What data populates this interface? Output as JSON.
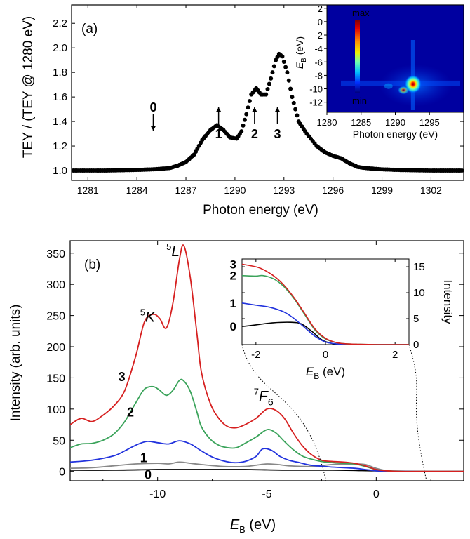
{
  "colors": {
    "black": "#000000",
    "red": "#d62020",
    "green": "#3aa35a",
    "blue": "#2233dd",
    "gray": "#888888"
  },
  "chart_data": [
    {
      "type": "scatter",
      "panel_label": "(a)",
      "xlabel": "Photon energy (eV)",
      "ylabel": "TEY / (TEY @ 1280 eV)",
      "xlim": [
        1280,
        1304
      ],
      "ylim": [
        0.92,
        2.35
      ],
      "xticks": [
        1281,
        1284,
        1287,
        1290,
        1293,
        1296,
        1299,
        1302
      ],
      "xtick_labels": [
        "1281",
        "1284",
        "1287",
        "1290",
        "1293",
        "1296",
        "1299",
        "1302"
      ],
      "yticks": [
        1.0,
        1.2,
        1.4,
        1.6,
        1.8,
        2.0,
        2.2
      ],
      "ytick_labels": [
        "1.0",
        "1.2",
        "1.4",
        "1.6",
        "1.8",
        "2.0",
        "2.2"
      ],
      "series": [
        {
          "x": [
            1280,
            1282,
            1284,
            1285,
            1286,
            1286.5,
            1287,
            1287.5,
            1288,
            1288.5,
            1288.9,
            1289.3,
            1289.7,
            1290.1,
            1290.4,
            1290.7,
            1291.0,
            1291.3,
            1291.6,
            1291.9,
            1292.2,
            1292.5,
            1292.7,
            1292.9,
            1293.2,
            1293.5,
            1293.9,
            1294.4,
            1295.0,
            1295.5,
            1296.0,
            1296.5,
            1297.0,
            1297.5,
            1298.0,
            1299.0,
            1300.0,
            1302.0,
            1304.0
          ],
          "y": [
            1.0,
            1.0,
            1.005,
            1.01,
            1.02,
            1.04,
            1.07,
            1.13,
            1.25,
            1.33,
            1.37,
            1.33,
            1.27,
            1.26,
            1.32,
            1.46,
            1.62,
            1.67,
            1.62,
            1.62,
            1.75,
            1.9,
            1.95,
            1.93,
            1.8,
            1.6,
            1.4,
            1.3,
            1.2,
            1.15,
            1.12,
            1.1,
            1.06,
            1.03,
            1.02,
            1.01,
            1.005,
            1.0,
            1.0
          ]
        }
      ],
      "annotations": [
        {
          "text": "0",
          "x": 1285.0,
          "color": "#000000"
        },
        {
          "text": "1",
          "x": 1289.0,
          "color": "#2233dd"
        },
        {
          "text": "2",
          "x": 1291.2,
          "color": "#3aa35a"
        },
        {
          "text": "3",
          "x": 1292.6,
          "color": "#d62020"
        }
      ],
      "inset": {
        "type": "heatmap",
        "xlabel": "Photon energy (eV)",
        "ylabel": "E",
        "ylabel_sub": "B",
        "ylabel_unit": " (eV)",
        "xlim": [
          1280,
          1300
        ],
        "ylim": [
          -13.5,
          2.5
        ],
        "xticks": [
          1280,
          1285,
          1290,
          1295
        ],
        "xtick_labels": [
          "1280",
          "1285",
          "1290",
          "1295"
        ],
        "yticks": [
          2,
          0,
          -2,
          -4,
          -6,
          -8,
          -10,
          -12
        ],
        "ytick_labels": [
          "2",
          "0",
          "-2",
          "-4",
          "-6",
          "-8",
          "-10",
          "-12"
        ],
        "colorbar": {
          "max_label": "max",
          "min_label": "min"
        }
      }
    },
    {
      "type": "line",
      "panel_label": "(b)",
      "xlabel": "E",
      "xlabel_sub": "B",
      "xlabel_unit": " (eV)",
      "ylabel": "Intensity (arb. units)",
      "xlim": [
        -14,
        4
      ],
      "ylim": [
        -15,
        370
      ],
      "xticks": [
        -10,
        -5,
        0
      ],
      "xtick_labels": [
        "-10",
        "-5",
        "0"
      ],
      "yticks": [
        0,
        50,
        100,
        150,
        200,
        250,
        300,
        350
      ],
      "ytick_labels": [
        "0",
        "50",
        "100",
        "150",
        "200",
        "250",
        "300",
        "350"
      ],
      "series": [
        {
          "label": "3",
          "color": "#d62020",
          "x": [
            -14,
            -13.5,
            -13,
            -12.5,
            -12,
            -11.5,
            -11,
            -10.6,
            -10.2,
            -9.9,
            -9.6,
            -9.3,
            -9.0,
            -8.8,
            -8.5,
            -8.2,
            -8.0,
            -7.6,
            -7.2,
            -6.8,
            -6.4,
            -6.0,
            -5.5,
            -5.0,
            -4.6,
            -4.2,
            -3.8,
            -3.4,
            -3.0,
            -2.5,
            -2.0,
            -1.5,
            -1.0,
            -0.5,
            0.0,
            0.5,
            1.0,
            2.0,
            4.0
          ],
          "y": [
            75,
            85,
            80,
            90,
            105,
            130,
            185,
            240,
            252,
            245,
            230,
            270,
            340,
            362,
            310,
            220,
            160,
            110,
            85,
            72,
            70,
            75,
            85,
            100,
            98,
            85,
            62,
            42,
            28,
            18,
            16,
            15,
            13,
            9,
            3,
            1,
            0,
            0,
            0
          ]
        },
        {
          "label": "2",
          "color": "#3aa35a",
          "x": [
            -14,
            -13.5,
            -13,
            -12.5,
            -12,
            -11.5,
            -11,
            -10.6,
            -10.2,
            -9.9,
            -9.6,
            -9.3,
            -9.0,
            -8.8,
            -8.5,
            -8.2,
            -8.0,
            -7.6,
            -7.2,
            -6.8,
            -6.4,
            -6.0,
            -5.5,
            -5.0,
            -4.6,
            -4.2,
            -3.8,
            -3.4,
            -3.0,
            -2.5,
            -2.0,
            -1.5,
            -1.0,
            -0.5,
            0.0,
            0.5,
            1.0,
            2.0,
            4.0
          ],
          "y": [
            38,
            44,
            45,
            50,
            60,
            80,
            110,
            132,
            136,
            130,
            122,
            130,
            146,
            145,
            128,
            95,
            72,
            52,
            42,
            38,
            38,
            45,
            55,
            67,
            62,
            48,
            35,
            25,
            20,
            16,
            14,
            13,
            12,
            8,
            3,
            1,
            0,
            0,
            0
          ]
        },
        {
          "label": "1",
          "color": "#2233dd",
          "x": [
            -14,
            -13,
            -12,
            -11.5,
            -11,
            -10.5,
            -10.0,
            -9.5,
            -9.0,
            -8.5,
            -8.0,
            -7.5,
            -7.0,
            -6.5,
            -6.0,
            -5.5,
            -5.2,
            -4.8,
            -4.4,
            -4.0,
            -3.5,
            -3.0,
            -2.0,
            -1.0,
            -0.5,
            0.0,
            0.5,
            1.0,
            4.0
          ],
          "y": [
            15,
            18,
            25,
            33,
            42,
            48,
            46,
            44,
            49,
            44,
            33,
            23,
            17,
            14,
            16,
            24,
            36,
            34,
            24,
            18,
            14,
            10,
            7,
            5,
            3,
            1,
            0,
            0,
            0
          ]
        },
        {
          "label": "",
          "color": "#888888",
          "x": [
            -14,
            -13,
            -12,
            -11,
            -10,
            -9.5,
            -9.0,
            -8.5,
            -8.0,
            -7.0,
            -6.0,
            -5.5,
            -5.0,
            -4.5,
            -4.0,
            -3.0,
            -2.0,
            -1.0,
            -0.5,
            0.0,
            0.5,
            1.0,
            4.0
          ],
          "y": [
            5,
            6,
            9,
            12,
            13,
            12,
            15,
            13,
            11,
            8,
            8,
            10,
            12,
            11,
            9,
            8,
            11,
            12,
            11,
            5,
            1,
            0,
            0
          ]
        },
        {
          "label": "0",
          "color": "#000000",
          "x": [
            -14,
            -12,
            -10,
            -8,
            -6,
            -4,
            -2,
            0,
            2,
            4
          ],
          "y": [
            2,
            2,
            3,
            3,
            3,
            2,
            2,
            1,
            0,
            0
          ]
        }
      ],
      "annotations": [
        {
          "text": "K",
          "sup": "5",
          "x": -10.8,
          "y": 240
        },
        {
          "text": "L",
          "sup": "5",
          "x": -9.6,
          "y": 345
        },
        {
          "text": "F",
          "sup": "7",
          "sub": "6",
          "x": -5.6,
          "y": 113
        }
      ],
      "curve_labels": [
        {
          "text": "3",
          "color": "#d62020",
          "x": -11.8,
          "y": 145
        },
        {
          "text": "2",
          "color": "#3aa35a",
          "x": -11.4,
          "y": 88
        },
        {
          "text": "1",
          "color": "#2233dd",
          "x": -10.8,
          "y": 15
        },
        {
          "text": "0",
          "color": "#000000",
          "x": -10.6,
          "y": -12
        }
      ],
      "inset": {
        "xlabel": "E",
        "xlabel_sub": "B",
        "xlabel_unit": " (eV)",
        "ylabel": "Intensity",
        "xlim": [
          -2.4,
          2.4
        ],
        "ylim": [
          0,
          16.5
        ],
        "xticks": [
          -2,
          0,
          2
        ],
        "xtick_labels": [
          "-2",
          "0",
          "2"
        ],
        "yticks": [
          0,
          5,
          10,
          15
        ],
        "ytick_labels": [
          "0",
          "5",
          "10",
          "15"
        ],
        "series": [
          {
            "label": "3",
            "color": "#d62020",
            "x": [
              -2.4,
              -2.0,
              -1.8,
              -1.5,
              -1.2,
              -0.9,
              -0.6,
              -0.3,
              0.0,
              0.3,
              0.6,
              1.0,
              1.5,
              2.4
            ],
            "y": [
              15.5,
              15.0,
              14.5,
              13.3,
              11.5,
              9.0,
              6.0,
              3.0,
              1.2,
              0.4,
              0.15,
              0.05,
              0,
              0
            ]
          },
          {
            "label": "2",
            "color": "#3aa35a",
            "x": [
              -2.4,
              -2.0,
              -1.8,
              -1.5,
              -1.2,
              -0.9,
              -0.6,
              -0.3,
              0.0,
              0.3,
              0.6,
              1.0,
              1.5,
              2.4
            ],
            "y": [
              13.3,
              13.2,
              13.3,
              12.7,
              11.2,
              8.8,
              5.8,
              2.8,
              1.1,
              0.4,
              0.15,
              0.05,
              0,
              0
            ]
          },
          {
            "label": "1",
            "color": "#2233dd",
            "x": [
              -2.4,
              -2.0,
              -1.6,
              -1.2,
              -0.9,
              -0.6,
              -0.3,
              0.0,
              0.3,
              0.6,
              1.0,
              1.5,
              2.4
            ],
            "y": [
              8.0,
              7.6,
              7.2,
              6.3,
              5.0,
              3.3,
              1.6,
              0.5,
              0.15,
              0.05,
              0,
              0,
              0
            ]
          },
          {
            "label": "0",
            "color": "#000000",
            "x": [
              -2.4,
              -2.0,
              -1.5,
              -1.0,
              -0.7,
              -0.4,
              -0.1,
              0.2,
              0.5,
              1.0,
              1.5,
              2.4
            ],
            "y": [
              3.5,
              3.8,
              4.2,
              4.3,
              4.0,
              2.6,
              0.9,
              0.2,
              0.05,
              0,
              0,
              0
            ]
          }
        ]
      }
    }
  ]
}
